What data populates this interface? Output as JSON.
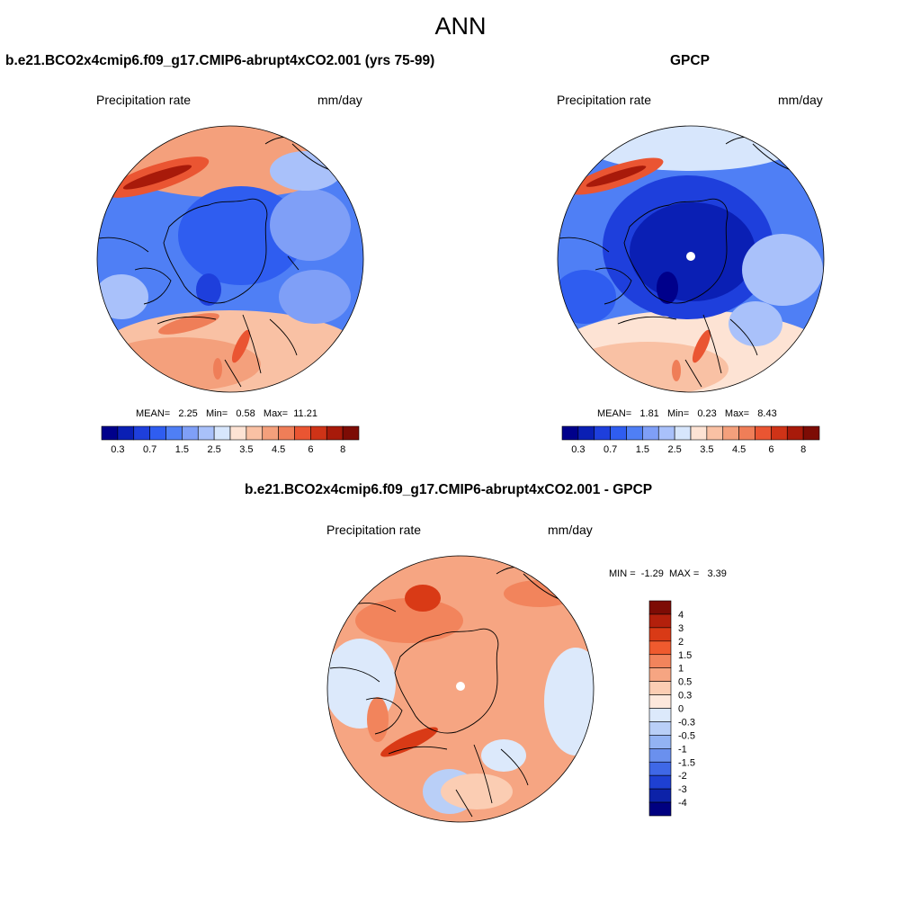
{
  "figure": {
    "title": "ANN"
  },
  "chart_data": [
    {
      "type": "heatmap",
      "projection": "north-polar-stereographic",
      "title": "b.e21.BCO2x4cmip6.f09_g17.CMIP6-abrupt4xCO2.001 (yrs 75-99)",
      "variable": "Precipitation rate",
      "units": "mm/day",
      "stats": {
        "mean_label": "MEAN=",
        "mean": "2.25",
        "min_label": "Min=",
        "min": "0.58",
        "max_label": "Max=",
        "max": "11.21"
      },
      "colorbar": {
        "orientation": "horizontal",
        "levels": [
          "0.3",
          "0.5",
          "0.7",
          "1",
          "1.5",
          "2",
          "2.5",
          "3",
          "3.5",
          "4",
          "4.5",
          "5",
          "6",
          "7",
          "8"
        ],
        "tick_labels": [
          "0.3",
          "0.7",
          "1.5",
          "2.5",
          "3.5",
          "4.5",
          "6",
          "8"
        ],
        "colors": [
          "#00008b",
          "#0a1fb4",
          "#1e3fdc",
          "#2f5df0",
          "#4f7ff5",
          "#7f9ff7",
          "#a9c1fa",
          "#d7e6fc",
          "#fde3d4",
          "#f9c1a4",
          "#f4a07c",
          "#ef7e58",
          "#ea5532",
          "#cf3317",
          "#a81a0a",
          "#7d0c05"
        ]
      }
    },
    {
      "type": "heatmap",
      "projection": "north-polar-stereographic",
      "title": "GPCP",
      "variable": "Precipitation rate",
      "units": "mm/day",
      "stats": {
        "mean_label": "MEAN=",
        "mean": "1.81",
        "min_label": "Min=",
        "min": "0.23",
        "max_label": "Max=",
        "max": "8.43"
      },
      "colorbar": {
        "orientation": "horizontal",
        "levels": [
          "0.3",
          "0.5",
          "0.7",
          "1",
          "1.5",
          "2",
          "2.5",
          "3",
          "3.5",
          "4",
          "4.5",
          "5",
          "6",
          "7",
          "8"
        ],
        "tick_labels": [
          "0.3",
          "0.7",
          "1.5",
          "2.5",
          "3.5",
          "4.5",
          "6",
          "8"
        ],
        "colors": [
          "#00008b",
          "#0a1fb4",
          "#1e3fdc",
          "#2f5df0",
          "#4f7ff5",
          "#7f9ff7",
          "#a9c1fa",
          "#d7e6fc",
          "#fde3d4",
          "#f9c1a4",
          "#f4a07c",
          "#ef7e58",
          "#ea5532",
          "#cf3317",
          "#a81a0a",
          "#7d0c05"
        ]
      }
    },
    {
      "type": "heatmap",
      "projection": "north-polar-stereographic",
      "title": "b.e21.BCO2x4cmip6.f09_g17.CMIP6-abrupt4xCO2.001 - GPCP",
      "variable": "Precipitation rate",
      "units": "mm/day",
      "stats": {
        "min_label": "MIN =",
        "min": "-1.29",
        "max_label": "MAX =",
        "max": "3.39"
      },
      "colorbar": {
        "orientation": "vertical",
        "levels": [
          "4",
          "3",
          "2",
          "1.5",
          "1",
          "0.5",
          "0.3",
          "0",
          "-0.3",
          "-0.5",
          "-1",
          "-1.5",
          "-2",
          "-3",
          "-4"
        ],
        "tick_labels": [
          "4",
          "3",
          "2",
          "1.5",
          "1",
          "0.5",
          "0.3",
          "0",
          "-0.3",
          "-0.5",
          "-1",
          "-1.5",
          "-2",
          "-3",
          "-4"
        ],
        "colors": [
          "#7d0c05",
          "#b3200c",
          "#d93a16",
          "#ef5a2e",
          "#f2845c",
          "#f6a582",
          "#fbcdb3",
          "#fde8dc",
          "#dce9fb",
          "#b9cff7",
          "#93b3f3",
          "#6a90ee",
          "#3f68e6",
          "#1e40d2",
          "#0c22a8",
          "#000080"
        ]
      }
    }
  ]
}
